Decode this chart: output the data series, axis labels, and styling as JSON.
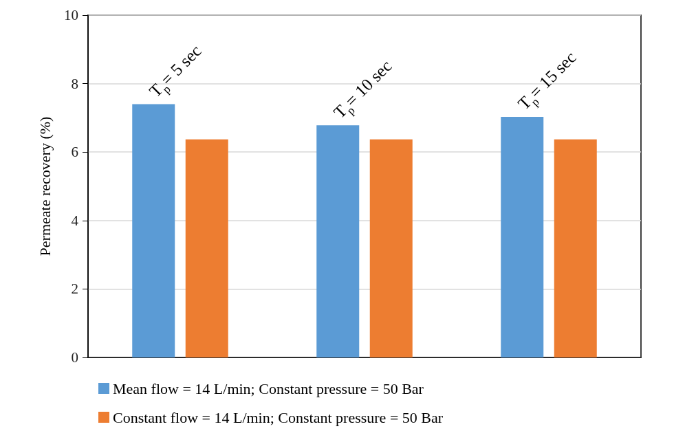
{
  "chart_data": {
    "type": "bar",
    "ylabel": "Permeate recovery (%)",
    "categories": [
      null,
      null,
      null
    ],
    "series": [
      {
        "name": "Mean flow = 14 L/min; Constant pressure = 50 Bar",
        "color": "#5b9bd5",
        "values": [
          7.4,
          6.78,
          7.03
        ]
      },
      {
        "name": "Constant flow = 14 L/min; Constant pressure = 50 Bar",
        "color": "#ed7d31",
        "values": [
          6.37,
          6.37,
          6.37
        ]
      }
    ],
    "ylim": [
      0,
      10
    ],
    "yticks": [
      0,
      2,
      4,
      6,
      8,
      10
    ],
    "grid": "y",
    "legend": "bottom",
    "annotations": [
      "T$_{p}$= 5 sec",
      "T$_{p}$= 10 sec",
      "T$_{p}$= 15 sec"
    ]
  }
}
